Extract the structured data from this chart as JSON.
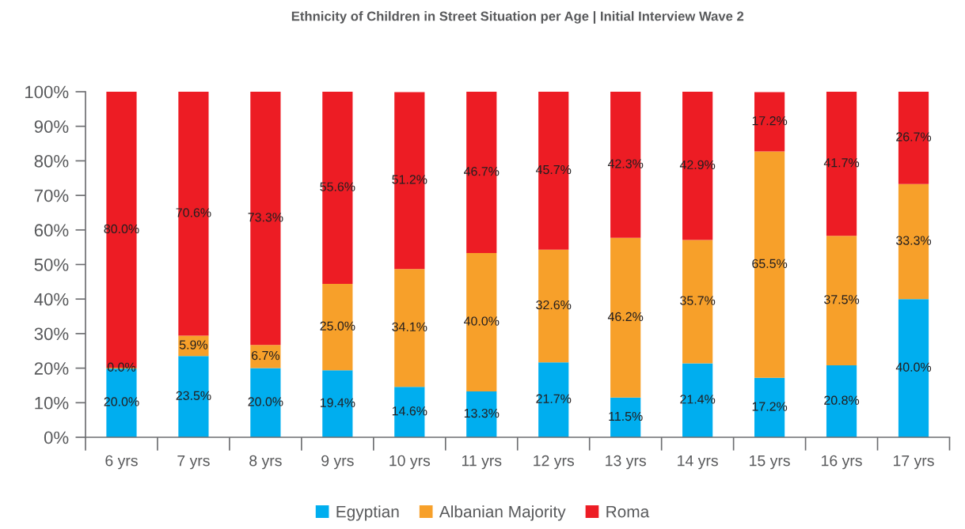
{
  "chart_data": {
    "type": "bar",
    "title": "Ethnicity of Children in Street Situation per Age | Initial Interview Wave 2",
    "categories": [
      "6 yrs",
      "7 yrs",
      "8 yrs",
      "9 yrs",
      "10 yrs",
      "11 yrs",
      "12 yrs",
      "13 yrs",
      "14 yrs",
      "15 yrs",
      "16 yrs",
      "17 yrs"
    ],
    "stacked": true,
    "series": [
      {
        "name": "Egyptian",
        "color": "#00aeef",
        "values": [
          20.0,
          23.5,
          20.0,
          19.4,
          14.6,
          13.3,
          21.7,
          11.5,
          21.4,
          17.2,
          20.8,
          40.0
        ],
        "value_labels": [
          "20.0%",
          "23.5%",
          "20.0%",
          "19.4%",
          "14.6%",
          "13.3%",
          "21.7%",
          "11.5%",
          "21.4%",
          "17.2%",
          "20.8%",
          "40.0%"
        ]
      },
      {
        "name": "Albanian Majority",
        "color": "#f7a02a",
        "values": [
          0.0,
          5.9,
          6.7,
          25.0,
          34.1,
          40.0,
          32.6,
          46.2,
          35.7,
          65.5,
          37.5,
          33.3
        ],
        "value_labels": [
          "0.0%",
          "5.9%",
          "6.7%",
          "25.0%",
          "34.1%",
          "40.0%",
          "32.6%",
          "46.2%",
          "35.7%",
          "65.5%",
          "37.5%",
          "33.3%"
        ]
      },
      {
        "name": "Roma",
        "color": "#ed1c24",
        "values": [
          80.0,
          70.6,
          73.3,
          55.6,
          51.2,
          46.7,
          45.7,
          42.3,
          42.9,
          17.2,
          41.7,
          26.7
        ],
        "value_labels": [
          "80.0%",
          "70.6%",
          "73.3%",
          "55.6%",
          "51.2%",
          "46.7%",
          "45.7%",
          "42.3%",
          "42.9%",
          "17.2%",
          "41.7%",
          "26.7%"
        ]
      }
    ],
    "ylim": [
      0,
      100
    ],
    "yticks": [
      {
        "value": 0,
        "label": "0%"
      },
      {
        "value": 10,
        "label": "10%"
      },
      {
        "value": 20,
        "label": "20%"
      },
      {
        "value": 30,
        "label": "30%"
      },
      {
        "value": 40,
        "label": "40%"
      },
      {
        "value": 50,
        "label": "50%"
      },
      {
        "value": 60,
        "label": "60%"
      },
      {
        "value": 70,
        "label": "70%"
      },
      {
        "value": 80,
        "label": "80%"
      },
      {
        "value": 90,
        "label": "90%"
      },
      {
        "value": 100,
        "label": "100%"
      }
    ],
    "legend": "bottom"
  }
}
